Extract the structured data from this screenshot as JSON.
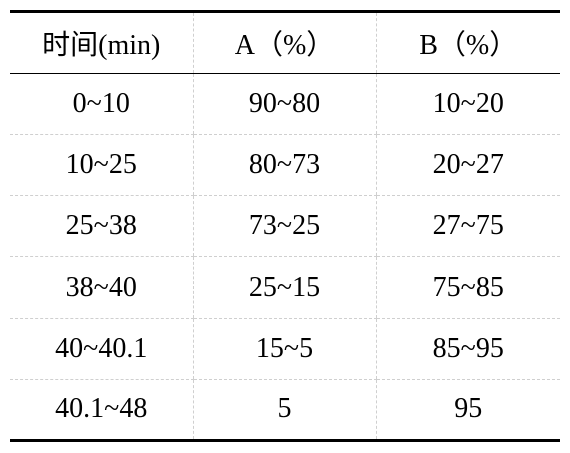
{
  "table": {
    "headers": [
      "时间(min)",
      "A（%）",
      "B（%）"
    ],
    "rows": [
      [
        "0~10",
        "90~80",
        "10~20"
      ],
      [
        "10~25",
        "80~73",
        "20~27"
      ],
      [
        "25~38",
        "73~25",
        "27~75"
      ],
      [
        "38~40",
        "25~15",
        "75~85"
      ],
      [
        "40~40.1",
        "15~5",
        "85~95"
      ],
      [
        "40.1~48",
        "5",
        "95"
      ]
    ]
  }
}
